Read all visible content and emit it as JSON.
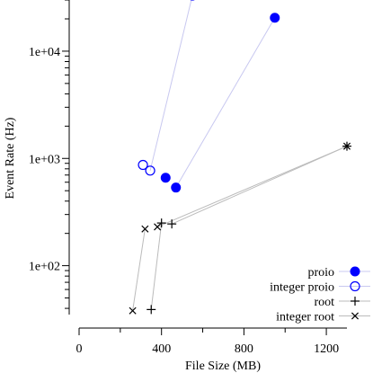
{
  "chart_data": {
    "type": "scatter",
    "title": "",
    "xlabel": "File Size (MB)",
    "ylabel": "Event Rate (Hz)",
    "xlim": [
      0,
      1300
    ],
    "ylim": [
      35,
      30000
    ],
    "y_scale": "log",
    "x_ticks": [
      {
        "value": 0,
        "label": "0"
      },
      {
        "value": 400,
        "label": "400"
      },
      {
        "value": 800,
        "label": "800"
      },
      {
        "value": 1200,
        "label": "1200"
      }
    ],
    "x_minor_ticks": [
      200,
      600,
      1000
    ],
    "y_ticks": [
      {
        "value": 100,
        "label": "1e+02"
      },
      {
        "value": 1000,
        "label": "1e+03"
      },
      {
        "value": 10000,
        "label": "1e+04"
      }
    ],
    "grid": false,
    "legend_position": "bottom-right",
    "series": [
      {
        "name": "proio",
        "marker": "filled-circle",
        "color": "#0000ff",
        "line_color": "#c8c8f0",
        "points": [
          {
            "x": 420,
            "y": 660
          },
          {
            "x": 470,
            "y": 535
          },
          {
            "x": 950,
            "y": 20500
          }
        ],
        "segments": [
          [
            1,
            2
          ]
        ]
      },
      {
        "name": "integer proio",
        "marker": "open-circle",
        "color": "#0000ff",
        "line_color": "#c8c8f0",
        "points": [
          {
            "x": 310,
            "y": 870
          },
          {
            "x": 345,
            "y": 770
          },
          {
            "x": 550,
            "y": 33000
          }
        ],
        "segments": [
          [
            1,
            2
          ]
        ]
      },
      {
        "name": "root",
        "marker": "plus",
        "color": "#000000",
        "line_color": "#bbbbbb",
        "points": [
          {
            "x": 350,
            "y": 39
          },
          {
            "x": 400,
            "y": 250
          },
          {
            "x": 450,
            "y": 245
          },
          {
            "x": 1300,
            "y": 1300
          }
        ],
        "segments": [
          [
            0,
            1
          ],
          [
            2,
            3
          ]
        ]
      },
      {
        "name": "integer root",
        "marker": "cross",
        "color": "#000000",
        "line_color": "#bbbbbb",
        "points": [
          {
            "x": 260,
            "y": 38
          },
          {
            "x": 320,
            "y": 220
          },
          {
            "x": 380,
            "y": 230
          },
          {
            "x": 1300,
            "y": 1300
          }
        ],
        "segments": [
          [
            0,
            1
          ],
          [
            2,
            3
          ]
        ]
      }
    ]
  }
}
